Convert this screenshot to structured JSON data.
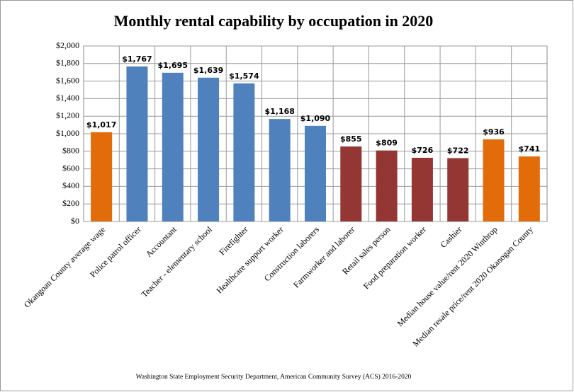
{
  "chart_data": {
    "type": "bar",
    "title": "Monthly rental capability by occupation in 2020",
    "source": "Washington State Employment Security Department, American Community Survey (ACS) 2016-2020",
    "categories": [
      "Okangoan County average wage",
      "Police patrol officer",
      "Accountant",
      "Teacher - elementary school",
      "Firefighter",
      "Healthcare support worker",
      "Construction laborers",
      "Farmworker and laborer",
      "Retail sales person",
      "Food preparation worker",
      "Cashier",
      "Median house value/rent 2020 Winthrop",
      "Median resale price/rent 2020 Okanogan County"
    ],
    "values": [
      1017,
      1767,
      1695,
      1639,
      1574,
      1168,
      1090,
      855,
      809,
      726,
      722,
      936,
      741
    ],
    "value_labels": [
      "$1,017",
      "$1,767",
      "$1,695",
      "$1,639",
      "$1,574",
      "$1,168",
      "$1,090",
      "$855",
      "$809",
      "$726",
      "$722",
      "$936",
      "$741"
    ],
    "colors": [
      "#e36c0a",
      "#4f81bd",
      "#4f81bd",
      "#4f81bd",
      "#4f81bd",
      "#4f81bd",
      "#4f81bd",
      "#943634",
      "#943634",
      "#943634",
      "#943634",
      "#e36c0a",
      "#e36c0a"
    ],
    "ylim": [
      0,
      2000
    ],
    "yticks": [
      {
        "value": 0,
        "label": "$0"
      },
      {
        "value": 200,
        "label": "$200"
      },
      {
        "value": 400,
        "label": "$400"
      },
      {
        "value": 600,
        "label": "$600"
      },
      {
        "value": 800,
        "label": "$800"
      },
      {
        "value": 1000,
        "label": "$1,000"
      },
      {
        "value": 1200,
        "label": "$1,200"
      },
      {
        "value": 1400,
        "label": "$1,400"
      },
      {
        "value": 1600,
        "label": "$1,600"
      },
      {
        "value": 1800,
        "label": "$1,800"
      },
      {
        "value": 2000,
        "label": "$2,000"
      }
    ],
    "grid": true
  }
}
